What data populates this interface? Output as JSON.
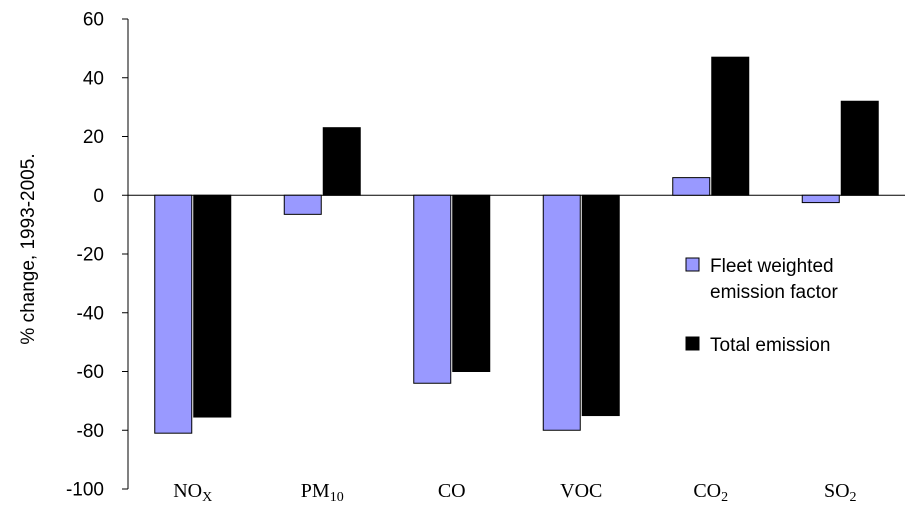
{
  "chart_data": {
    "type": "bar",
    "ylabel": "% change, 1993-2005.",
    "xlabel": "",
    "ylim": [
      -100,
      60
    ],
    "yticks": [
      60,
      40,
      20,
      0,
      -20,
      -40,
      -60,
      -80,
      -100
    ],
    "grid": false,
    "legend_position": "right",
    "categories": [
      {
        "base": "NO",
        "sub": "X"
      },
      {
        "base": "PM",
        "sub": "10"
      },
      {
        "base": "CO",
        "sub": ""
      },
      {
        "base": "VOC",
        "sub": ""
      },
      {
        "base": "CO",
        "sub": "2"
      },
      {
        "base": "SO",
        "sub": "2"
      }
    ],
    "series": [
      {
        "name": "Fleet weighted emission factor",
        "legend_lines": [
          "Fleet weighted",
          "emission factor"
        ],
        "color": "#9999ff",
        "values": [
          -81,
          -6.5,
          -64,
          -80,
          6,
          -2.5
        ]
      },
      {
        "name": "Total emission",
        "legend_lines": [
          "Total emission"
        ],
        "color": "#000000",
        "values": [
          -75.5,
          23,
          -60,
          -75,
          47,
          32
        ]
      }
    ]
  }
}
